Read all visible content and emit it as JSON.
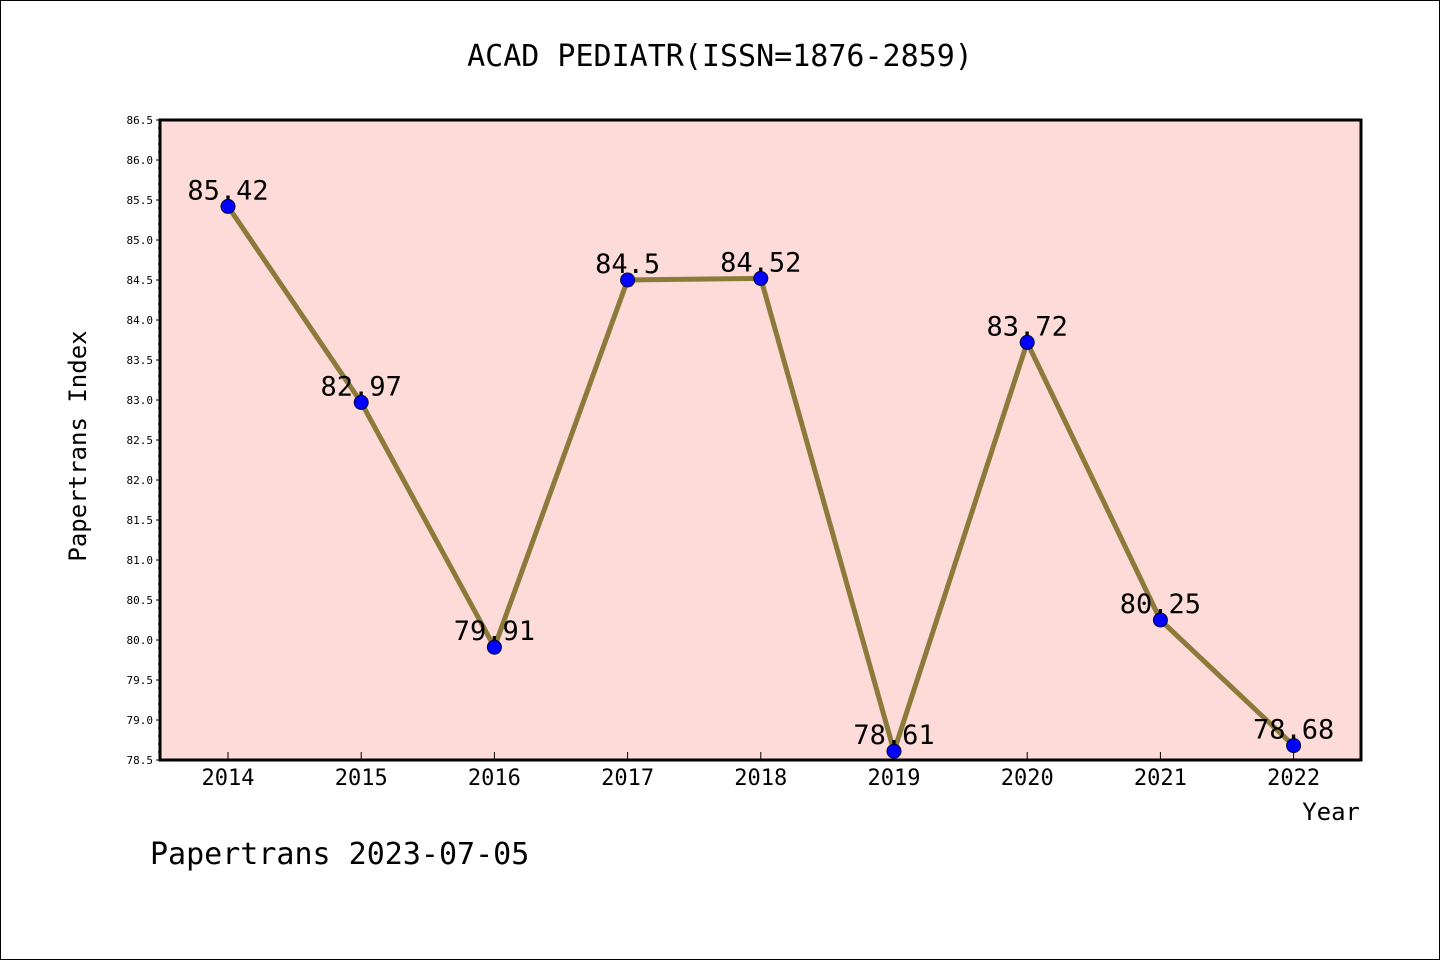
{
  "chart_data": {
    "type": "line",
    "title": "ACAD PEDIATR(ISSN=1876-2859)",
    "xlabel": "Year",
    "ylabel": "Papertrans Index",
    "footer": "Papertrans 2023-07-05",
    "categories": [
      "2014",
      "2015",
      "2016",
      "2017",
      "2018",
      "2019",
      "2020",
      "2021",
      "2022"
    ],
    "series": [
      {
        "values": [
          85.42,
          82.97,
          79.91,
          84.5,
          84.52,
          78.61,
          83.72,
          80.25,
          78.68
        ],
        "labels": [
          "85.42",
          "82.97",
          "79.91",
          "84.5",
          "84.52",
          "78.61",
          "83.72",
          "80.25",
          "78.68"
        ]
      }
    ],
    "ylim": [
      78.5,
      86.5
    ],
    "yticks": [
      "78.5",
      "79.0",
      "79.5",
      "80.0",
      "80.5",
      "81.0",
      "81.5",
      "82.0",
      "82.5",
      "83.0",
      "83.5",
      "84.0",
      "84.5",
      "85.0",
      "85.5",
      "86.0",
      "86.5"
    ],
    "grid": false,
    "legend": "none",
    "colors": {
      "plot_background": "#fddbd8",
      "line": "#8b7a3a",
      "marker": "#0000ff",
      "axis": "#000000"
    }
  }
}
